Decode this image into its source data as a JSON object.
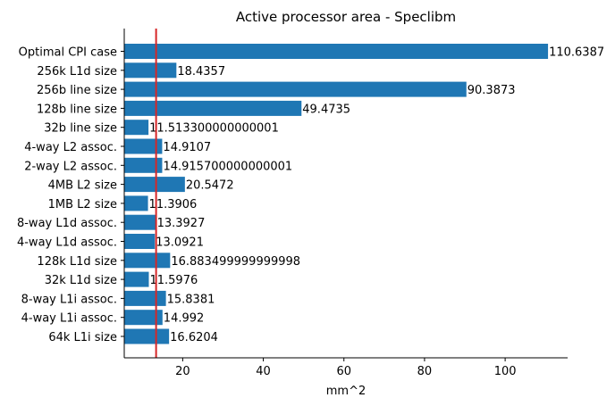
{
  "chart_data": {
    "type": "bar",
    "orientation": "horizontal",
    "title": "Active processor area - Speclibm",
    "xlabel": "mm^2",
    "ylabel": "",
    "xlim": [
      5.5,
      115.5
    ],
    "xticks": [
      20,
      40,
      60,
      80,
      100
    ],
    "xtick_labels": [
      "20",
      "40",
      "60",
      "80",
      "100"
    ],
    "categories": [
      "Optimal CPI case",
      "256k L1d size",
      "256b line size",
      "128b line size",
      "32b line size",
      "4-way L2 assoc.",
      "2-way L2 assoc.",
      "4MB L2 size",
      "1MB L2 size",
      "8-way L1d assoc.",
      "4-way L1d assoc.",
      "128k L1d size",
      "32k L1d size",
      "8-way L1i assoc.",
      "4-way L1i assoc.",
      "64k L1i size"
    ],
    "values": [
      110.6387,
      18.4357,
      90.3873,
      49.4735,
      11.5133,
      14.9107,
      14.9157,
      20.5472,
      11.3906,
      13.3927,
      13.0921,
      16.8835,
      11.5976,
      15.8381,
      14.992,
      16.6204
    ],
    "value_labels": [
      "110.6387",
      "18.4357",
      "90.3873",
      "49.4735",
      "11.513300000000001",
      "14.9107",
      "14.915700000000001",
      "20.5472",
      "11.3906",
      "13.3927",
      "13.0921",
      "16.883499999999998",
      "11.5976",
      "15.8381",
      "14.992",
      "16.6204"
    ],
    "reference_line": {
      "axis": "x",
      "value": 13.4
    },
    "bar_color": "#1f77b4",
    "reference_line_color": "#d62728",
    "grid": false,
    "legend": "none"
  }
}
